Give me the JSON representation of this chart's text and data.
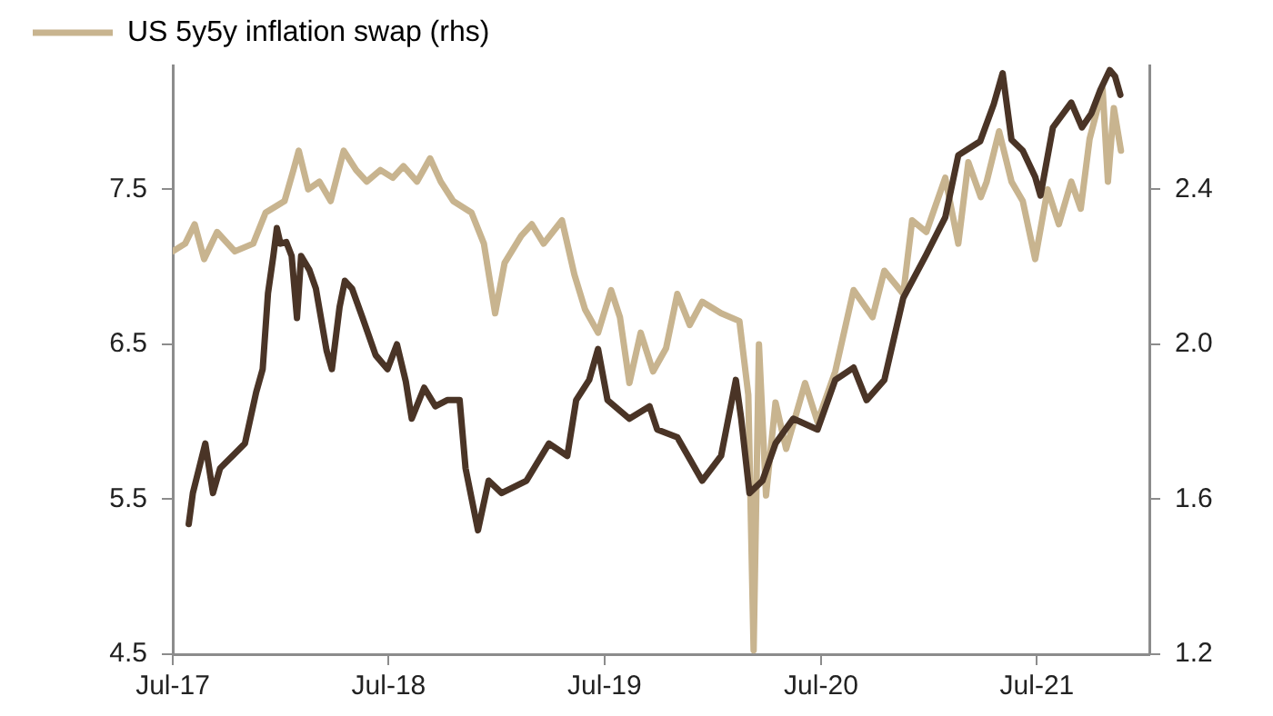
{
  "chart_data": {
    "type": "line",
    "legend": "top left",
    "line_style": "solid",
    "marker": "none",
    "grid": false,
    "xlim": [
      "2017-07-01",
      "2022-01-07"
    ],
    "xticks": [
      {
        "value": "2017-07-01",
        "label": "Jul-17"
      },
      {
        "value": "2018-07-01",
        "label": "Jul-18"
      },
      {
        "value": "2019-07-01",
        "label": "Jul-19"
      },
      {
        "value": "2020-07-01",
        "label": "Jul-20"
      },
      {
        "value": "2021-07-01",
        "label": "Jul-21"
      }
    ],
    "ylim": [
      4.5,
      8.3
    ],
    "yticks": [
      4.5,
      5.5,
      6.5,
      7.5
    ],
    "y2lim": [
      1.2,
      2.72
    ],
    "y2ticks": [
      {
        "value": 1.2,
        "label": "1.2"
      },
      {
        "value": 1.6,
        "label": "1.6"
      },
      {
        "value": 2.0,
        "label": "2.0"
      },
      {
        "value": 2.4,
        "label": "2.4"
      }
    ],
    "series": [
      {
        "color": "#4a3426",
        "axis": "y",
        "x": [
          "2017-07-28",
          "2017-08-04",
          "2017-08-25",
          "2017-09-07",
          "2017-09-19",
          "2017-10-10",
          "2017-10-31",
          "2017-11-19",
          "2017-11-30",
          "2017-12-09",
          "2017-12-18",
          "2017-12-24",
          "2017-12-30",
          "2018-01-09",
          "2018-01-18",
          "2018-01-27",
          "2018-02-03",
          "2018-02-17",
          "2018-02-28",
          "2018-03-18",
          "2018-03-27",
          "2018-04-09",
          "2018-04-18",
          "2018-04-30",
          "2018-05-18",
          "2018-06-09",
          "2018-06-29",
          "2018-07-15",
          "2018-07-30",
          "2018-08-09",
          "2018-08-30",
          "2018-09-18",
          "2018-10-08",
          "2018-10-29",
          "2018-11-08",
          "2018-11-29",
          "2018-12-17",
          "2019-01-08",
          "2019-01-29",
          "2019-02-19",
          "2019-03-29",
          "2019-04-29",
          "2019-05-14",
          "2019-06-05",
          "2019-06-20",
          "2019-07-06",
          "2019-08-12",
          "2019-09-15",
          "2019-09-28",
          "2019-11-01",
          "2019-12-13",
          "2020-01-14",
          "2020-02-08",
          "2020-02-17",
          "2020-03-02",
          "2020-03-24",
          "2020-04-15",
          "2020-05-15",
          "2020-06-25",
          "2020-07-25",
          "2020-08-25",
          "2020-09-16",
          "2020-10-16",
          "2020-11-17",
          "2020-12-26",
          "2021-01-27",
          "2021-02-18",
          "2021-03-27",
          "2021-04-19",
          "2021-05-04",
          "2021-05-19",
          "2021-06-07",
          "2021-06-28",
          "2021-07-07",
          "2021-07-28",
          "2021-08-28",
          "2021-09-15",
          "2021-10-01",
          "2021-10-16",
          "2021-11-01",
          "2021-11-10",
          "2021-11-19"
        ],
        "values": [
          5.34,
          5.54,
          5.86,
          5.54,
          5.7,
          5.78,
          5.86,
          6.19,
          6.34,
          6.83,
          7.07,
          7.25,
          7.15,
          7.16,
          7.07,
          6.67,
          7.07,
          6.98,
          6.86,
          6.46,
          6.34,
          6.74,
          6.91,
          6.86,
          6.67,
          6.43,
          6.34,
          6.5,
          6.26,
          6.02,
          6.22,
          6.1,
          6.14,
          6.14,
          5.7,
          5.3,
          5.62,
          5.54,
          5.58,
          5.62,
          5.86,
          5.78,
          6.14,
          6.27,
          6.47,
          6.14,
          6.02,
          6.1,
          5.95,
          5.9,
          5.62,
          5.78,
          6.27,
          6.02,
          5.54,
          5.62,
          5.86,
          6.02,
          5.95,
          6.27,
          6.35,
          6.14,
          6.27,
          6.8,
          7.08,
          7.32,
          7.72,
          7.81,
          8.05,
          8.25,
          7.82,
          7.75,
          7.58,
          7.46,
          7.9,
          8.06,
          7.9,
          7.99,
          8.14,
          8.27,
          8.23,
          8.11
        ]
      },
      {
        "name": "US 5y5y inflation swap (rhs)",
        "color": "#c8b48f",
        "axis": "y2",
        "x": [
          "2017-07-01",
          "2017-07-22",
          "2017-08-07",
          "2017-08-23",
          "2017-09-14",
          "2017-10-14",
          "2017-11-14",
          "2017-12-05",
          "2018-01-06",
          "2018-01-21",
          "2018-01-30",
          "2018-02-15",
          "2018-03-06",
          "2018-03-25",
          "2018-04-16",
          "2018-05-07",
          "2018-05-25",
          "2018-06-17",
          "2018-07-08",
          "2018-07-26",
          "2018-08-18",
          "2018-09-09",
          "2018-09-27",
          "2018-10-18",
          "2018-11-18",
          "2018-12-09",
          "2018-12-28",
          "2019-01-13",
          "2019-02-10",
          "2019-02-28",
          "2019-03-20",
          "2019-04-20",
          "2019-05-11",
          "2019-05-29",
          "2019-06-20",
          "2019-07-12",
          "2019-07-27",
          "2019-08-12",
          "2019-08-31",
          "2019-09-21",
          "2019-10-13",
          "2019-11-01",
          "2019-11-22",
          "2019-12-13",
          "2020-01-14",
          "2020-02-14",
          "2020-02-29",
          "2020-03-09",
          "2020-03-18",
          "2020-03-30",
          "2020-04-15",
          "2020-05-03",
          "2020-06-04",
          "2020-06-25",
          "2020-07-25",
          "2020-08-25",
          "2020-09-26",
          "2020-10-16",
          "2020-11-17",
          "2020-12-02",
          "2020-12-26",
          "2021-01-27",
          "2021-02-18",
          "2021-03-07",
          "2021-03-28",
          "2021-04-07",
          "2021-04-28",
          "2021-05-19",
          "2021-06-07",
          "2021-06-28",
          "2021-07-19",
          "2021-08-07",
          "2021-08-28",
          "2021-09-13",
          "2021-09-28",
          "2021-10-20",
          "2021-10-29",
          "2021-11-08",
          "2021-11-20"
        ],
        "values": [
          2.24,
          2.26,
          2.31,
          2.22,
          2.29,
          2.24,
          2.26,
          2.34,
          2.37,
          2.45,
          2.5,
          2.4,
          2.42,
          2.37,
          2.5,
          2.45,
          2.42,
          2.45,
          2.43,
          2.46,
          2.42,
          2.48,
          2.42,
          2.37,
          2.34,
          2.26,
          2.08,
          2.21,
          2.28,
          2.31,
          2.26,
          2.32,
          2.18,
          2.09,
          2.03,
          2.14,
          2.07,
          1.9,
          2.03,
          1.93,
          1.99,
          2.13,
          2.05,
          2.11,
          2.08,
          2.06,
          1.87,
          1.21,
          2.0,
          1.61,
          1.85,
          1.73,
          1.9,
          1.8,
          1.93,
          2.14,
          2.07,
          2.19,
          2.13,
          2.32,
          2.29,
          2.43,
          2.26,
          2.47,
          2.38,
          2.42,
          2.55,
          2.42,
          2.37,
          2.22,
          2.4,
          2.31,
          2.42,
          2.35,
          2.53,
          2.66,
          2.42,
          2.61,
          2.5
        ]
      }
    ]
  }
}
